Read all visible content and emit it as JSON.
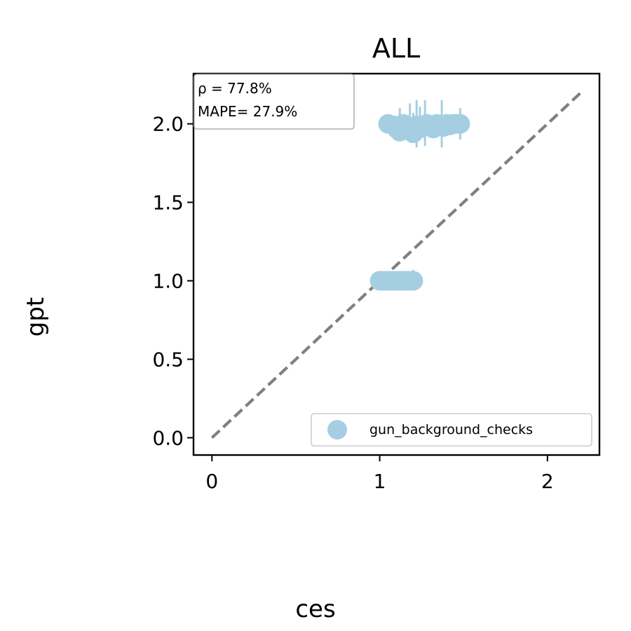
{
  "chart_data": {
    "type": "scatter",
    "title": "ALL",
    "xlabel": "ces",
    "ylabel": "gpt",
    "xlim": [
      -0.11,
      2.31
    ],
    "ylim": [
      -0.11,
      2.32
    ],
    "xticks": [
      0,
      1,
      2
    ],
    "xtick_labels": [
      "0",
      "1",
      "2"
    ],
    "yticks": [
      0.0,
      0.5,
      1.0,
      1.5,
      2.0
    ],
    "ytick_labels": [
      "0.0",
      "0.5",
      "1.0",
      "1.5",
      "2.0"
    ],
    "grid": false,
    "legend_position": "lower-right",
    "annotation": {
      "rho_label": "ρ = 77.8%",
      "mape_label": "MAPE= 27.9%"
    },
    "reference_line": {
      "style": "dashed",
      "color": "#808080",
      "x": [
        0,
        2.2
      ],
      "y": [
        0,
        2.2
      ]
    },
    "series": [
      {
        "name": "gun_background_checks",
        "color": "#a6cee3",
        "points": [
          {
            "x": 1.0,
            "y": 1.0
          },
          {
            "x": 1.02,
            "y": 1.0
          },
          {
            "x": 1.04,
            "y": 1.0
          },
          {
            "x": 1.06,
            "y": 1.0
          },
          {
            "x": 1.08,
            "y": 1.0
          },
          {
            "x": 1.1,
            "y": 1.0
          },
          {
            "x": 1.12,
            "y": 1.0
          },
          {
            "x": 1.14,
            "y": 1.0
          },
          {
            "x": 1.16,
            "y": 1.0
          },
          {
            "x": 1.18,
            "y": 1.0
          },
          {
            "x": 1.2,
            "y": 1.0
          },
          {
            "x": 1.05,
            "y": 2.0
          },
          {
            "x": 1.08,
            "y": 1.99
          },
          {
            "x": 1.1,
            "y": 1.97
          },
          {
            "x": 1.12,
            "y": 1.95
          },
          {
            "x": 1.14,
            "y": 2.0
          },
          {
            "x": 1.16,
            "y": 1.98
          },
          {
            "x": 1.18,
            "y": 1.96
          },
          {
            "x": 1.2,
            "y": 1.94
          },
          {
            "x": 1.22,
            "y": 1.99
          },
          {
            "x": 1.24,
            "y": 1.97
          },
          {
            "x": 1.26,
            "y": 1.98
          },
          {
            "x": 1.28,
            "y": 2.0
          },
          {
            "x": 1.3,
            "y": 1.99
          },
          {
            "x": 1.32,
            "y": 1.97
          },
          {
            "x": 1.34,
            "y": 2.0
          },
          {
            "x": 1.36,
            "y": 1.99
          },
          {
            "x": 1.38,
            "y": 1.98
          },
          {
            "x": 1.4,
            "y": 2.0
          },
          {
            "x": 1.42,
            "y": 1.99
          },
          {
            "x": 1.44,
            "y": 2.0
          },
          {
            "x": 1.46,
            "y": 2.0
          },
          {
            "x": 1.48,
            "y": 2.0
          }
        ],
        "error_bars": [
          {
            "x": 1.2,
            "y": 1.0,
            "low": 0.95,
            "high": 1.07
          },
          {
            "x": 1.12,
            "y": 1.98,
            "low": 1.9,
            "high": 2.1
          },
          {
            "x": 1.18,
            "y": 2.0,
            "low": 1.88,
            "high": 2.13
          },
          {
            "x": 1.2,
            "y": 1.97,
            "low": 1.91,
            "high": 2.07
          },
          {
            "x": 1.22,
            "y": 2.0,
            "low": 1.85,
            "high": 2.15
          },
          {
            "x": 1.24,
            "y": 1.98,
            "low": 1.9,
            "high": 2.11
          },
          {
            "x": 1.27,
            "y": 2.0,
            "low": 1.86,
            "high": 2.15
          },
          {
            "x": 1.34,
            "y": 2.0,
            "low": 1.92,
            "high": 2.06
          },
          {
            "x": 1.37,
            "y": 2.0,
            "low": 1.85,
            "high": 2.15
          },
          {
            "x": 1.4,
            "y": 2.0,
            "low": 1.94,
            "high": 2.06
          },
          {
            "x": 1.48,
            "y": 2.0,
            "low": 1.9,
            "high": 2.1
          }
        ]
      }
    ]
  }
}
